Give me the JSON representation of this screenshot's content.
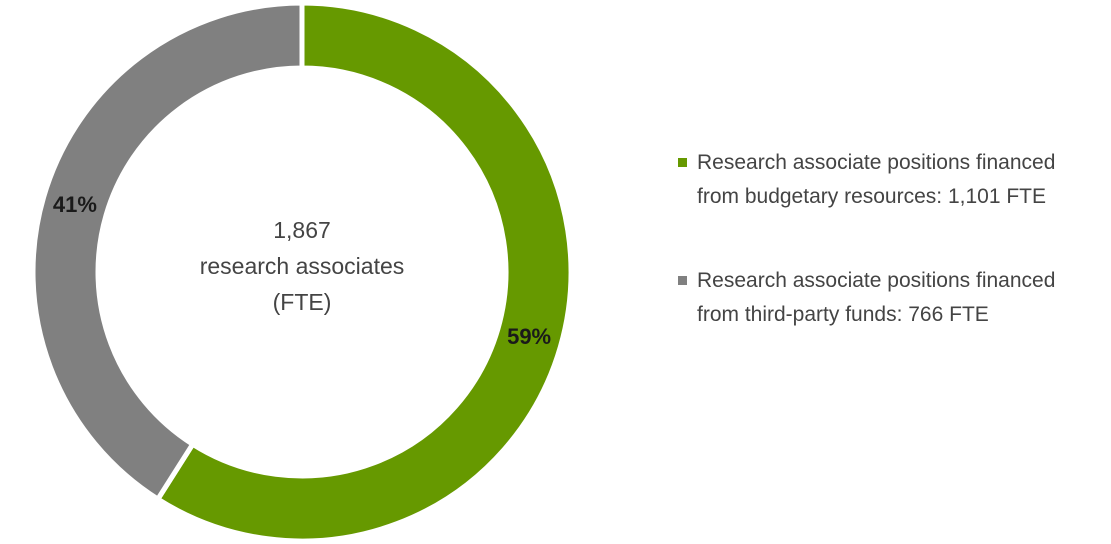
{
  "chart_data": {
    "type": "donut",
    "center_text": [
      "1,867",
      "research associates",
      "(FTE)"
    ],
    "series": [
      {
        "name": "Research associate positions financed from budgetary resources: 1,101 FTE",
        "color": "#669900",
        "values": [
          59
        ],
        "value_labels": [
          "59%"
        ]
      },
      {
        "name": "Research associate positions financed from third-party funds: 766 FTE",
        "color": "#808080",
        "values": [
          41
        ],
        "value_labels": [
          "41%"
        ]
      }
    ],
    "legend": "right"
  }
}
